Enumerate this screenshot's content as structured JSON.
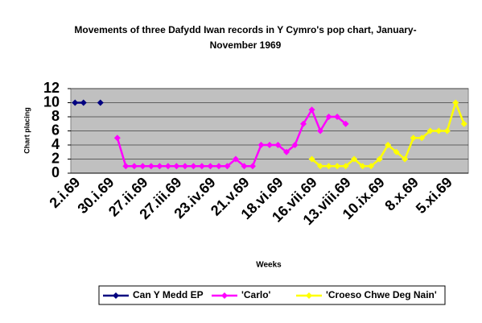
{
  "chart_data": {
    "type": "line",
    "title": "Movements of three Dafydd Iwan records in Y Cymro's pop chart, January-November 1969",
    "x_label": "Weeks",
    "y_label": "Chart placing",
    "categories": [
      "2.i.69",
      null,
      null,
      null,
      "30.i.69",
      null,
      null,
      null,
      "27.ii.69",
      null,
      null,
      null,
      "27.iii.69",
      null,
      null,
      null,
      "23.iv.69",
      null,
      null,
      null,
      "21.v.69",
      null,
      null,
      null,
      "18.vi.69",
      null,
      null,
      null,
      "16.vii.69",
      null,
      null,
      null,
      "13.viii.69",
      null,
      null,
      null,
      "10.ix.69",
      null,
      null,
      null,
      "8.x.69",
      null,
      null,
      null,
      "5.xi.69",
      null,
      null
    ],
    "series": [
      {
        "name": "Can Y Medd EP",
        "color": "#000080",
        "values": [
          10,
          10,
          null,
          10,
          null,
          null,
          null,
          null,
          null,
          null,
          null,
          null,
          null,
          null,
          null,
          null,
          null,
          null,
          null,
          null,
          null,
          null,
          null,
          null,
          null,
          null,
          null,
          null,
          null,
          null,
          null,
          null,
          null,
          null,
          null,
          null,
          null,
          null,
          null,
          null,
          null,
          null,
          null,
          null,
          null,
          null,
          null
        ]
      },
      {
        "name": "'Carlo'",
        "color": "#ff00ff",
        "values": [
          null,
          null,
          null,
          null,
          null,
          5,
          1,
          1,
          1,
          1,
          1,
          1,
          1,
          1,
          1,
          1,
          1,
          1,
          1,
          2,
          1,
          1,
          4,
          4,
          4,
          3,
          4,
          7,
          9,
          6,
          8,
          8,
          7,
          null,
          null,
          null,
          null,
          null,
          null,
          null,
          null,
          null,
          null,
          null,
          null,
          null,
          null
        ]
      },
      {
        "name": "'Croeso Chwe Deg Nain'",
        "color": "#ffff00",
        "values": [
          null,
          null,
          null,
          null,
          null,
          null,
          null,
          null,
          null,
          null,
          null,
          null,
          null,
          null,
          null,
          null,
          null,
          null,
          null,
          null,
          null,
          null,
          null,
          null,
          null,
          null,
          null,
          null,
          2,
          1,
          1,
          1,
          1,
          2,
          1,
          1,
          2,
          4,
          3,
          2,
          5,
          5,
          6,
          6,
          6,
          10,
          7
        ]
      }
    ],
    "ylim": [
      0,
      12
    ],
    "yticks": [
      0,
      2,
      4,
      6,
      8,
      10,
      12
    ],
    "grid": true,
    "legend": "bottom"
  }
}
